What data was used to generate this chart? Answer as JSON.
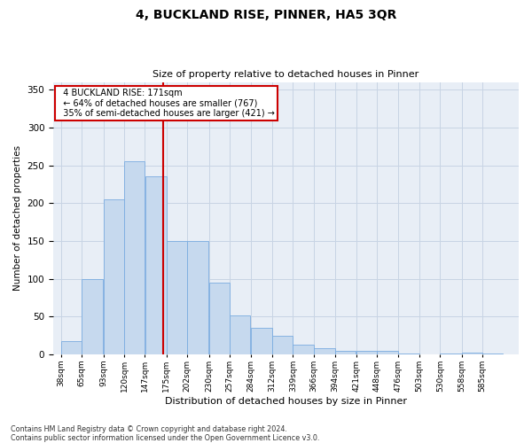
{
  "title1": "4, BUCKLAND RISE, PINNER, HA5 3QR",
  "title2": "Size of property relative to detached houses in Pinner",
  "xlabel": "Distribution of detached houses by size in Pinner",
  "ylabel": "Number of detached properties",
  "footnote1": "Contains HM Land Registry data © Crown copyright and database right 2024.",
  "footnote2": "Contains public sector information licensed under the Open Government Licence v3.0.",
  "annotation_line1": "4 BUCKLAND RISE: 171sqm",
  "annotation_line2": "← 64% of detached houses are smaller (767)",
  "annotation_line3": "35% of semi-detached houses are larger (421) →",
  "property_size": 171,
  "bar_color": "#c6d9ee",
  "bar_edgecolor": "#7aace0",
  "vline_color": "#cc0000",
  "annotation_box_edgecolor": "#cc0000",
  "grid_color": "#c8d4e4",
  "bg_color": "#e8eef6",
  "categories": [
    "38sqm",
    "65sqm",
    "93sqm",
    "120sqm",
    "147sqm",
    "175sqm",
    "202sqm",
    "230sqm",
    "257sqm",
    "284sqm",
    "312sqm",
    "339sqm",
    "366sqm",
    "394sqm",
    "421sqm",
    "448sqm",
    "476sqm",
    "503sqm",
    "530sqm",
    "558sqm",
    "585sqm"
  ],
  "values": [
    18,
    100,
    205,
    255,
    235,
    150,
    150,
    95,
    52,
    35,
    25,
    13,
    8,
    5,
    5,
    5,
    1,
    0,
    1,
    2,
    1
  ],
  "bin_edges": [
    38,
    65,
    93,
    120,
    147,
    175,
    202,
    230,
    257,
    284,
    312,
    339,
    366,
    394,
    421,
    448,
    476,
    503,
    530,
    558,
    585,
    612
  ],
  "ylim": [
    0,
    360
  ],
  "yticks": [
    0,
    50,
    100,
    150,
    200,
    250,
    300,
    350
  ]
}
